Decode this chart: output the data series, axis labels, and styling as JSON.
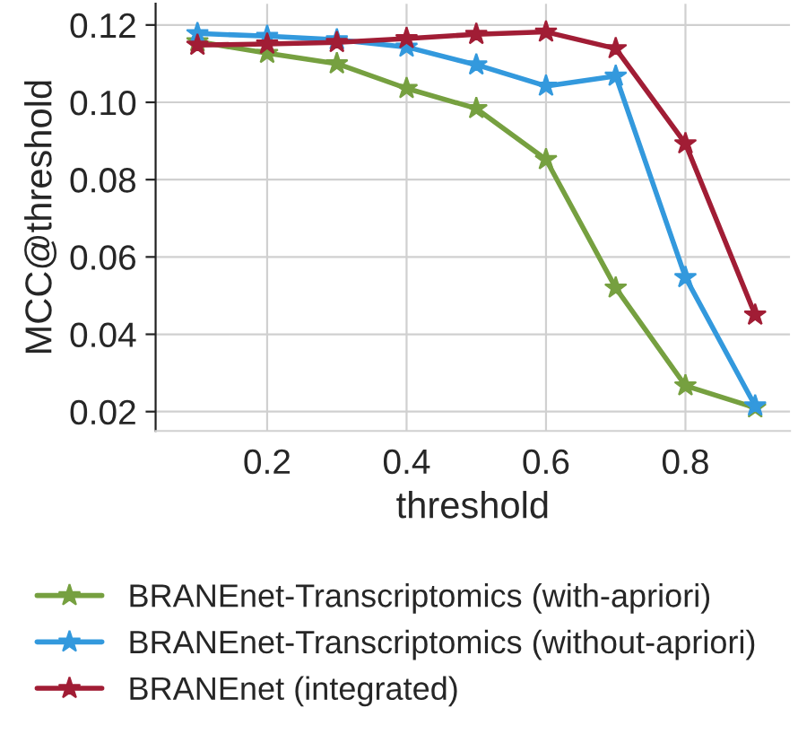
{
  "chart_data": {
    "type": "line",
    "xlabel": "threshold",
    "ylabel": "MCC@threshold",
    "x": [
      0.1,
      0.2,
      0.3,
      0.4,
      0.5,
      0.6,
      0.7,
      0.8,
      0.9
    ],
    "series": [
      {
        "name": "BRANEnet-Transcriptomics (with-apriori)",
        "color": "#76a040",
        "values": [
          0.1157,
          0.1127,
          0.11,
          0.1036,
          0.0984,
          0.0852,
          0.052,
          0.0267,
          0.021
        ]
      },
      {
        "name": "BRANEnet-Transcriptomics (without-apriori)",
        "color": "#3399dd",
        "values": [
          0.1178,
          0.1171,
          0.1162,
          0.1143,
          0.1097,
          0.1042,
          0.1068,
          0.0547,
          0.0215
        ]
      },
      {
        "name": "BRANEnet (integrated)",
        "color": "#a11d35",
        "values": [
          0.1148,
          0.1151,
          0.1155,
          0.1165,
          0.1176,
          0.1182,
          0.1139,
          0.0893,
          0.045
        ]
      }
    ],
    "xlim": [
      0.04,
      0.95
    ],
    "ylim": [
      0.015,
      0.1255
    ],
    "xticks": [
      0.2,
      0.4,
      0.6,
      0.8
    ],
    "yticks": [
      {
        "value": 0.02,
        "label": "0.02"
      },
      {
        "value": 0.04,
        "label": "0.04"
      },
      {
        "value": 0.06,
        "label": "0.06"
      },
      {
        "value": 0.08,
        "label": "0.08"
      },
      {
        "value": 0.1,
        "label": "0.10"
      },
      {
        "value": 0.12,
        "label": "0.12"
      }
    ],
    "grid": true,
    "legend": "bottom",
    "marker": "star",
    "line_style": "solid"
  }
}
